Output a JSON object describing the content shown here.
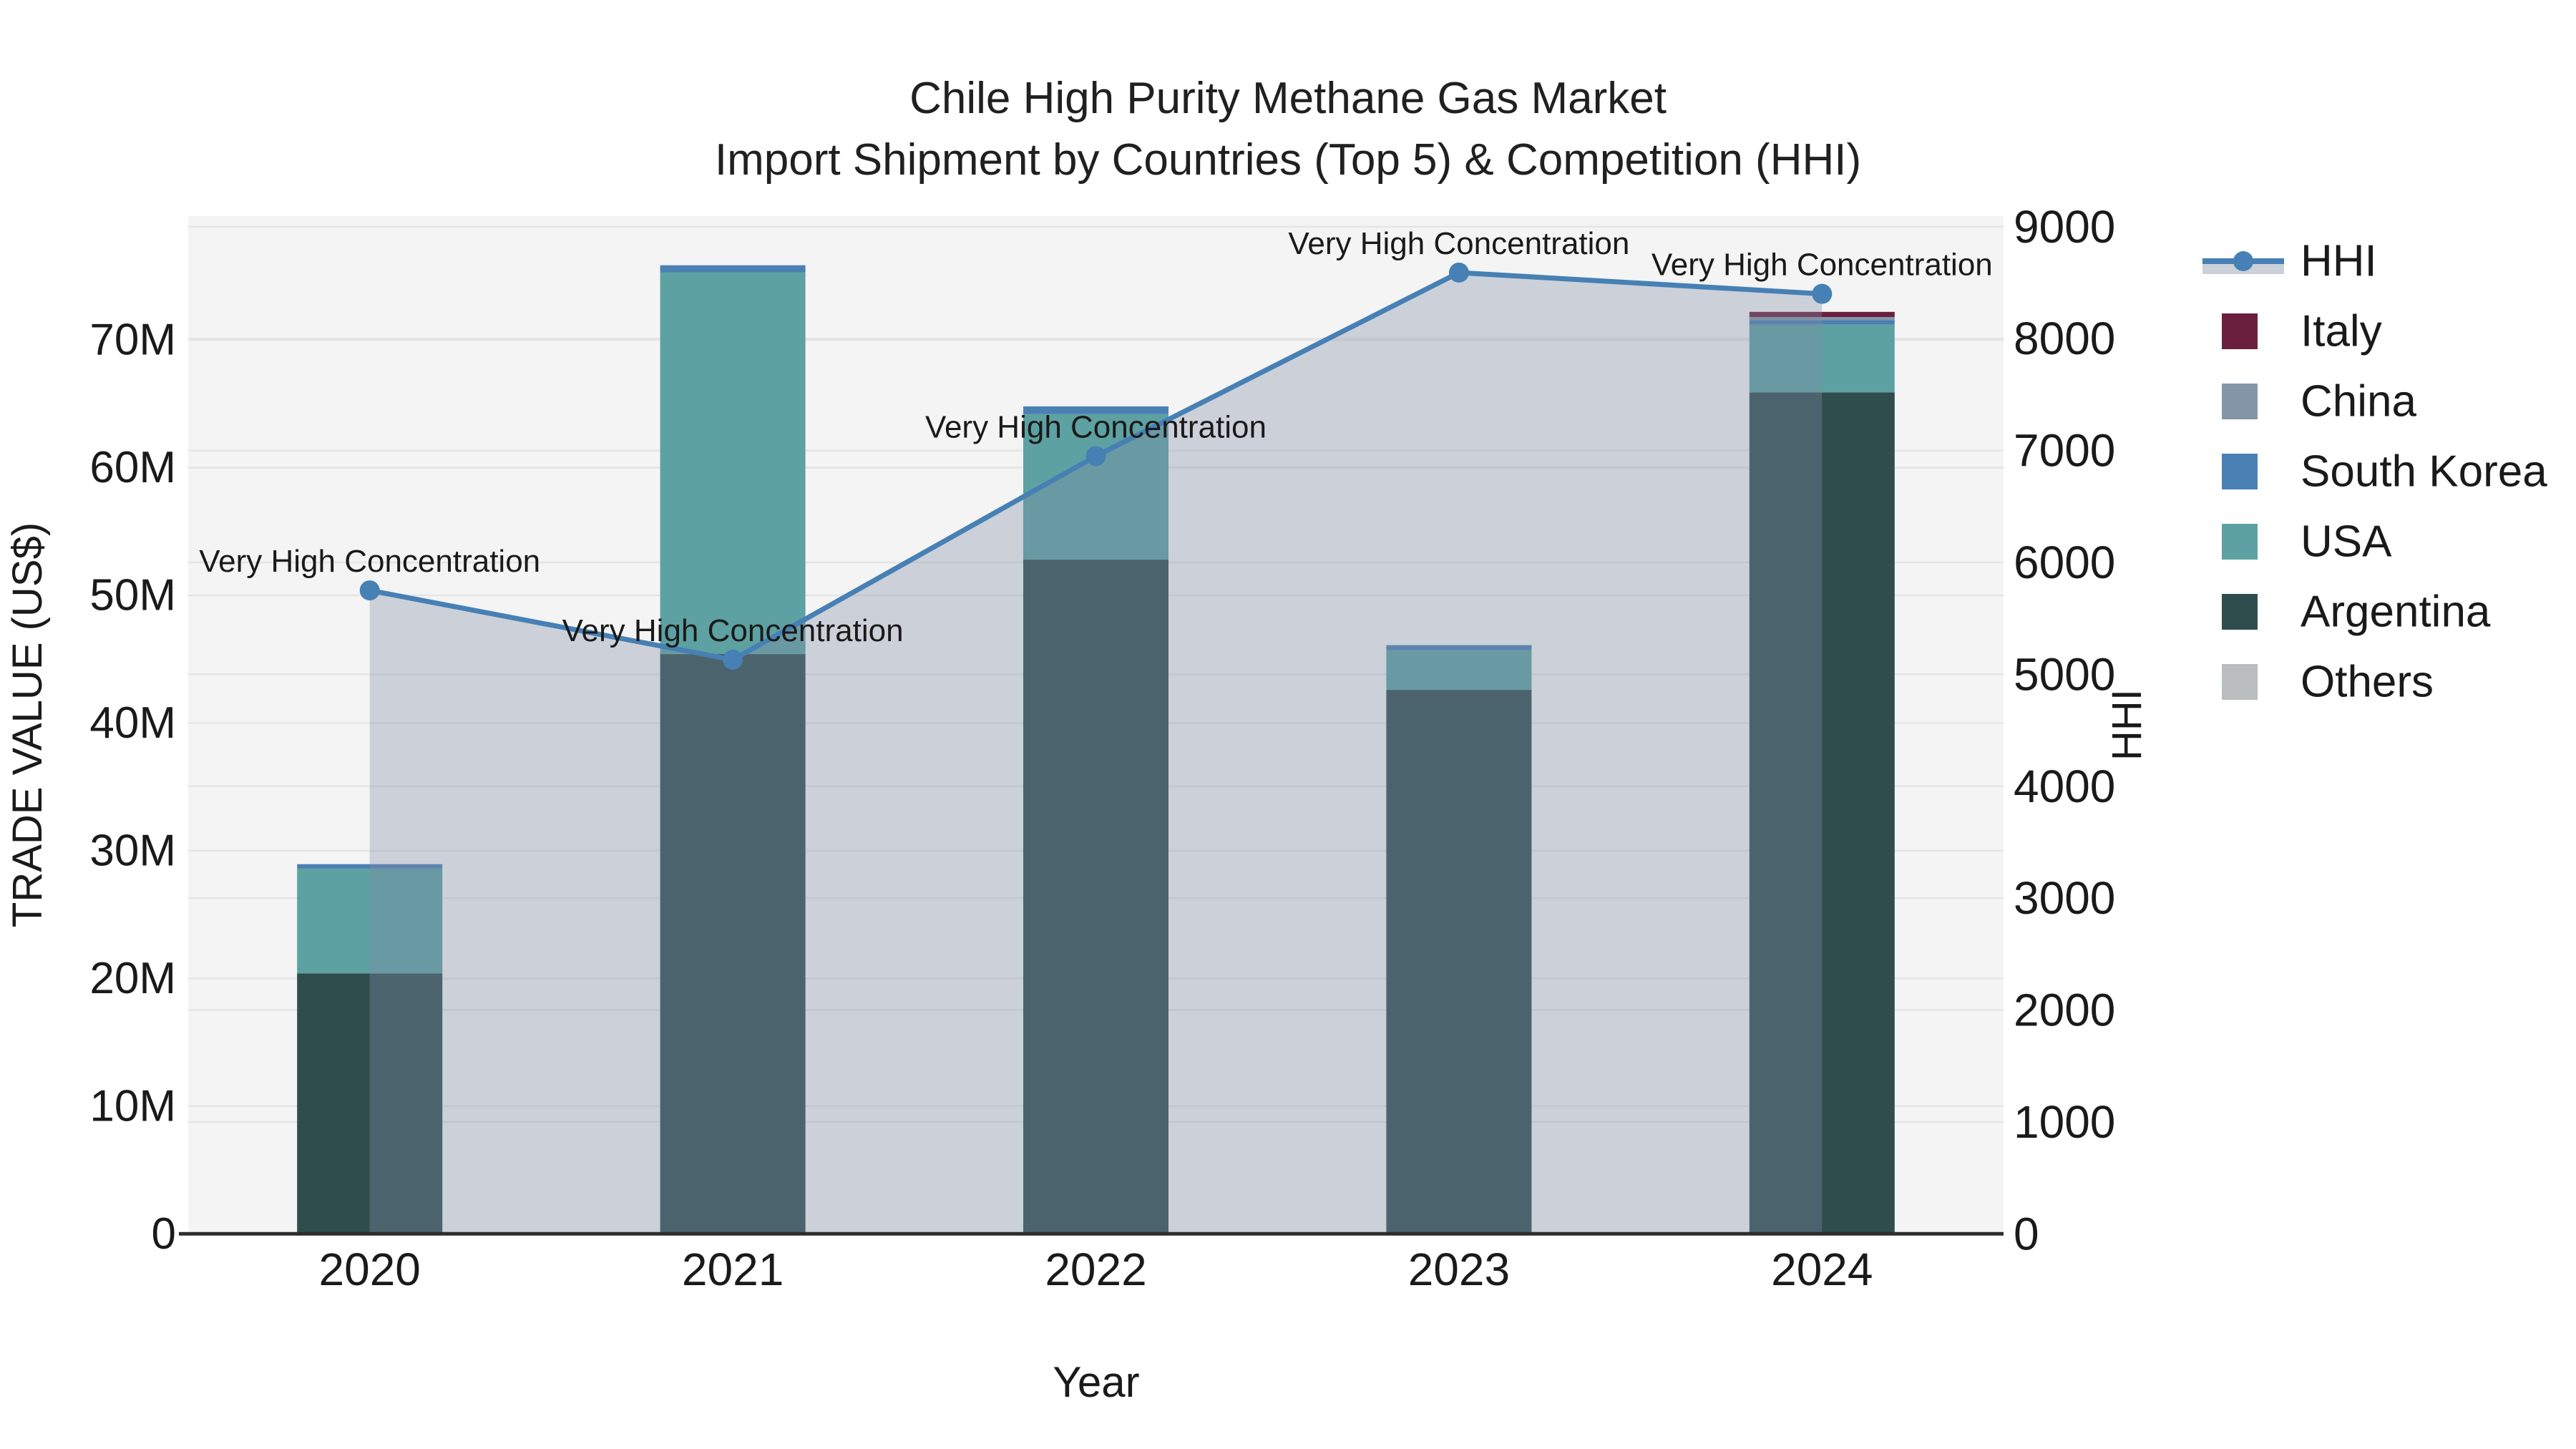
{
  "title": {
    "line1": "Chile High Purity Methane Gas Market",
    "line2": "Import Shipment by Countries (Top 5) & Competition (HHI)"
  },
  "axis_titles": {
    "x": "Year",
    "y_left": "TRADE VALUE (US$)",
    "y_right": "HHI"
  },
  "annotation_label": "Very High Concentration",
  "legend": [
    {
      "label": "HHI",
      "type": "line",
      "color": "#4680b4"
    },
    {
      "label": "Italy",
      "type": "square",
      "color": "#6b1f3e"
    },
    {
      "label": "China",
      "type": "square",
      "color": "#8395a7"
    },
    {
      "label": "South Korea",
      "type": "square",
      "color": "#4a80b3"
    },
    {
      "label": "USA",
      "type": "square",
      "color": "#5da1a2"
    },
    {
      "label": "Argentina",
      "type": "square",
      "color": "#2f4d4d"
    },
    {
      "label": "Others",
      "type": "square",
      "color": "#b9bdbd"
    }
  ],
  "chart_data": {
    "type": "combo: stacked bar (left axis) + line with area fill (right axis)",
    "categories": [
      "2020",
      "2021",
      "2022",
      "2023",
      "2024"
    ],
    "bar_unit": "Trade value, millions US$",
    "series": [
      {
        "name": "Argentina",
        "type": "bar",
        "color": "#2f4d4d",
        "values": [
          20.4,
          45.4,
          52.8,
          42.6,
          65.9
        ]
      },
      {
        "name": "USA",
        "type": "bar",
        "color": "#5da1a2",
        "values": [
          8.2,
          29.9,
          11.4,
          3.1,
          5.3
        ]
      },
      {
        "name": "South Korea",
        "type": "bar",
        "color": "#4a80b3",
        "values": [
          0.35,
          0.55,
          0.6,
          0.4,
          0.35
        ]
      },
      {
        "name": "China",
        "type": "bar",
        "color": "#8395a7",
        "values": [
          0,
          0,
          0,
          0,
          0.25
        ]
      },
      {
        "name": "Italy",
        "type": "bar",
        "color": "#6b1f3e",
        "values": [
          0,
          0,
          0,
          0,
          0.4
        ]
      },
      {
        "name": "HHI",
        "type": "line+area",
        "axis": "right",
        "color": "#4680b4",
        "area_fill": "rgba(130,140,165,0.35)",
        "marker": "circle",
        "values": [
          5750,
          5130,
          6950,
          8590,
          8400
        ]
      }
    ],
    "annotations": [
      "Very High Concentration",
      "Very High Concentration",
      "Very High Concentration",
      "Very High Concentration",
      "Very High Concentration"
    ],
    "xlabel": "Year",
    "y_left": {
      "label": "TRADE VALUE (US$)",
      "lim": [
        0,
        79.7
      ],
      "ticks": [
        0,
        10,
        20,
        30,
        40,
        50,
        60,
        70
      ],
      "tick_labels": [
        "0",
        "10M",
        "20M",
        "30M",
        "40M",
        "50M",
        "60M",
        "70M"
      ]
    },
    "y_right": {
      "label": "HHI",
      "lim": [
        0,
        9095
      ],
      "ticks": [
        0,
        1000,
        2000,
        3000,
        4000,
        5000,
        6000,
        7000,
        8000,
        9000
      ],
      "tick_labels": [
        "0",
        "1000",
        "2000",
        "3000",
        "4000",
        "5000",
        "6000",
        "7000",
        "8000",
        "9000"
      ]
    },
    "grid": true,
    "plot_background": "#f4f4f4",
    "gridline_color": "#e4e5e7",
    "legend_position": "right"
  }
}
